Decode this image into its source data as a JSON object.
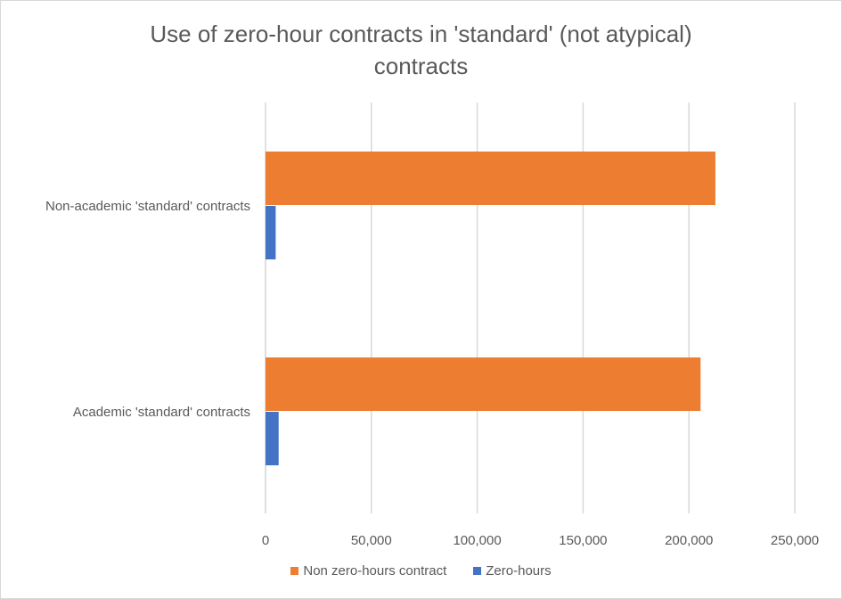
{
  "chart_data": {
    "type": "bar",
    "orientation": "horizontal",
    "title_line1": "Use of zero-hour contracts in 'standard' (not atypical)",
    "title_line2": "contracts",
    "categories": [
      "Non-academic 'standard' contracts",
      "Academic 'standard' contracts"
    ],
    "series": [
      {
        "name": "Non zero-hours contract",
        "color": "#ed7d31",
        "values": [
          212500,
          205500
        ]
      },
      {
        "name": "Zero-hours",
        "color": "#4472c4",
        "values": [
          4800,
          6200
        ]
      }
    ],
    "xlim": [
      0,
      250000
    ],
    "xticks": [
      0,
      50000,
      100000,
      150000,
      200000,
      250000
    ],
    "xtick_labels": [
      "0",
      "50,000",
      "100,000",
      "150,000",
      "200,000",
      "250,000"
    ],
    "grid": "vertical",
    "legend_position": "bottom"
  }
}
